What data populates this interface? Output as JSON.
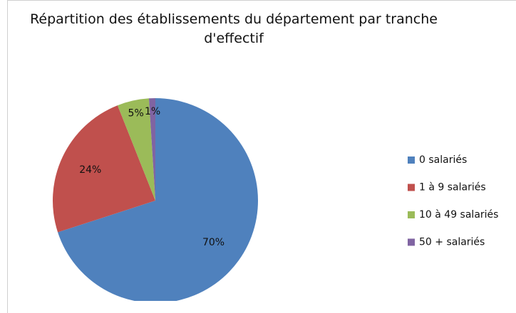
{
  "chart_data": {
    "type": "pie",
    "title": "Répartition des établissements du département par tranche d'effectif",
    "categories": [
      "0 salariés",
      "1 à 9 salariés",
      "10 à 49 salariés",
      "50 + salariés"
    ],
    "values": [
      70,
      24,
      5,
      1
    ],
    "value_labels": [
      "70%",
      "24%",
      "5%",
      "1%"
    ],
    "colors": [
      "#4f81bd",
      "#c0504d",
      "#9bbb59",
      "#8064a2"
    ],
    "legend": "right"
  }
}
